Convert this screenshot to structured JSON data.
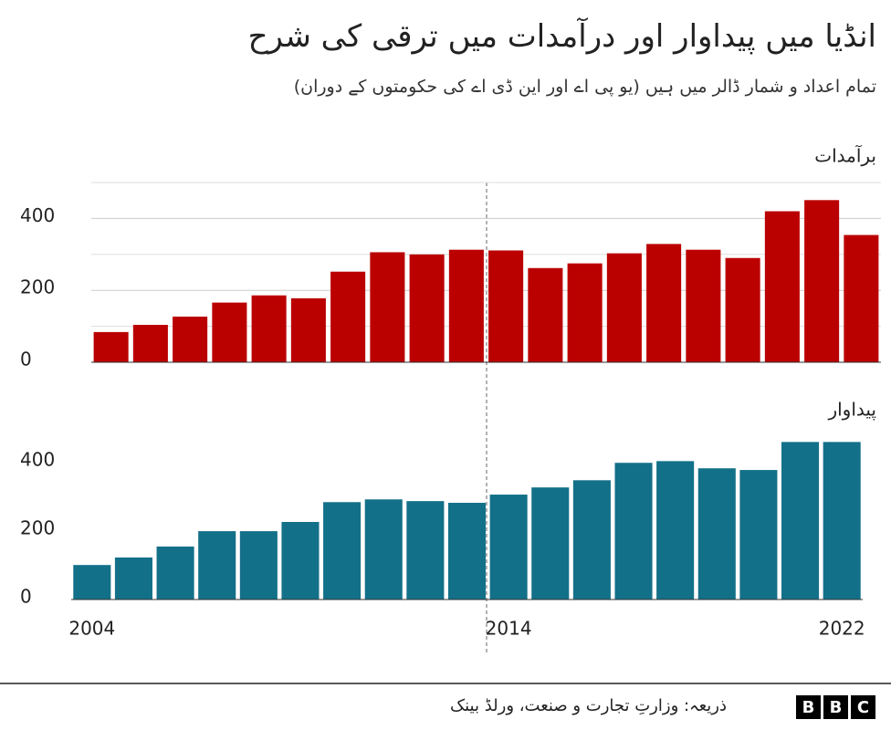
{
  "title": "انڈیا میں پیداوار اور درآمدات میں ترقی کی شرح",
  "subtitle": "تمام اعداد و شمار ڈالر میں ہیں (یو پی اے اور این ڈی اے کی حکومتوں کے دوران)",
  "source": "ذریعہ: وزارتِ تجارت و صنعت، ورلڈ بینک",
  "logo": [
    "B",
    "B",
    "C"
  ],
  "chart_data": [
    {
      "type": "bar",
      "title": "برآمدات",
      "color": "#bb0000",
      "categories": [
        null,
        null,
        null,
        null,
        null,
        null,
        null,
        null,
        null,
        null,
        null,
        null,
        null,
        null,
        null,
        null,
        null,
        null,
        null,
        null
      ],
      "values": [
        84,
        104,
        127,
        166,
        186,
        178,
        252,
        306,
        300,
        313,
        311,
        262,
        275,
        303,
        329,
        313,
        290,
        420,
        451,
        354
      ],
      "ylim": [
        0,
        500
      ],
      "yticks": [
        0,
        200,
        400
      ],
      "minor_yticks": [
        100,
        300,
        500
      ],
      "grid": true
    },
    {
      "type": "bar",
      "title": "پیداوار",
      "color": "#137089",
      "categories": [
        "2004",
        null,
        null,
        null,
        null,
        null,
        null,
        null,
        null,
        null,
        "2014",
        null,
        null,
        null,
        null,
        null,
        null,
        null,
        "2022"
      ],
      "values": [
        101,
        123,
        155,
        200,
        200,
        227,
        285,
        293,
        288,
        283,
        307,
        328,
        349,
        400,
        405,
        384,
        379,
        461,
        461
      ],
      "ylim": [
        0,
        470
      ],
      "yticks": [
        0,
        200,
        400
      ],
      "grid": false
    }
  ]
}
